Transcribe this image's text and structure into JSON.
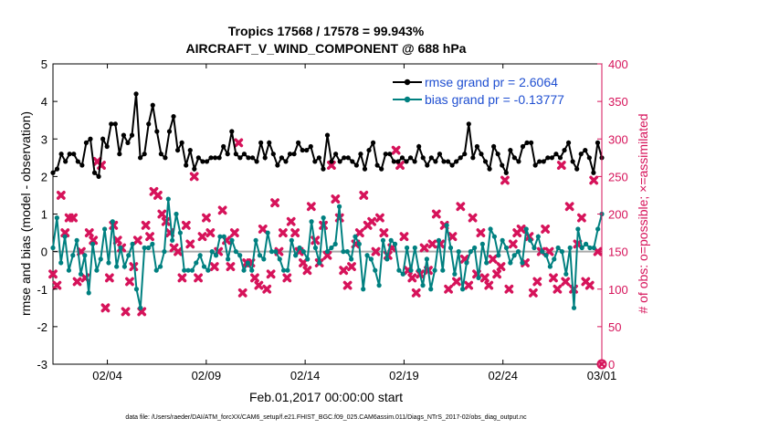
{
  "chart_data": {
    "type": "line",
    "title": "Tropics 17568 / 17578 = 99.943%",
    "subtitle": "AIRCRAFT_V_WIND_COMPONENT @ 688 hPa",
    "xlabel": "Feb.01,2017 00:00:00 start",
    "ylabel_left": "rmse and bias (model - observation)",
    "ylabel_right": "# of obs: o=possible; ×=assimilated",
    "x_ticks": [
      "02/04",
      "02/09",
      "02/14",
      "02/19",
      "02/24",
      "03/01"
    ],
    "x_tick_days": [
      3,
      8,
      13,
      18,
      23,
      28
    ],
    "xlim_days": [
      0.25,
      28
    ],
    "ylim_left": [
      -3,
      5
    ],
    "yticks_left": [
      -3,
      -2,
      -1,
      0,
      1,
      2,
      3,
      4,
      5
    ],
    "ylim_right": [
      0,
      400
    ],
    "yticks_right": [
      0,
      50,
      100,
      150,
      200,
      250,
      300,
      350,
      400
    ],
    "legend": [
      {
        "label": "rmse grand pr = 2.6064",
        "color": "#000000"
      },
      {
        "label": "bias grand pr = -0.13777",
        "color": "#008080"
      }
    ],
    "legend_text_color": "#1f4fd1",
    "colors": {
      "rmse": "#000000",
      "bias": "#008080",
      "obs": "#d6135a",
      "zero": "#aaaaaa",
      "right_axis": "#d6135a"
    },
    "rmse": [
      2.1,
      2.2,
      2.6,
      2.4,
      2.6,
      2.6,
      2.4,
      2.3,
      2.9,
      3.0,
      2.1,
      2.0,
      3.0,
      2.8,
      3.4,
      3.4,
      2.6,
      3.1,
      2.9,
      3.1,
      4.2,
      2.5,
      2.6,
      3.4,
      3.9,
      3.2,
      2.6,
      2.5,
      3.2,
      3.6,
      2.7,
      2.9,
      2.3,
      2.7,
      2.2,
      2.5,
      2.4,
      2.4,
      2.5,
      2.5,
      2.5,
      2.8,
      2.6,
      3.2,
      2.6,
      2.5,
      2.6,
      2.5,
      2.5,
      2.4,
      2.9,
      2.5,
      2.9,
      2.6,
      2.3,
      2.5,
      2.4,
      2.6,
      2.6,
      2.9,
      2.7,
      2.7,
      2.8,
      2.4,
      2.5,
      2.2,
      3.1,
      2.4,
      2.6,
      2.4,
      2.5,
      2.5,
      2.4,
      2.3,
      2.6,
      2.2,
      2.7,
      2.9,
      2.3,
      2.2,
      2.6,
      2.6,
      2.4,
      2.4,
      2.5,
      2.4,
      2.5,
      2.4,
      2.8,
      2.5,
      2.3,
      2.5,
      2.4,
      2.6,
      2.4,
      2.4,
      2.3,
      2.4,
      2.5,
      2.6,
      3.4,
      2.5,
      2.8,
      2.6,
      2.4,
      2.2,
      2.8,
      2.6,
      2.3,
      2.1,
      2.7,
      2.5,
      2.4,
      2.8,
      2.9,
      2.9,
      2.3,
      2.4,
      2.4,
      2.5,
      2.5,
      2.6,
      2.5,
      2.7,
      2.9,
      2.4,
      2.2,
      2.6,
      2.7,
      2.5,
      2.1,
      2.9,
      2.5
    ],
    "bias": [
      0.1,
      0.9,
      -0.3,
      0.4,
      -0.5,
      -0.1,
      0.3,
      -0.6,
      -0.1,
      -1.1,
      0.2,
      -0.5,
      -0.2,
      0.6,
      -0.3,
      0.8,
      -0.4,
      0.1,
      -0.4,
      -0.1,
      0.2,
      -1.0,
      -1.5,
      0.1,
      0.1,
      0.2,
      -0.5,
      -0.4,
      0.0,
      1.4,
      0.3,
      1.0,
      0.5,
      -0.5,
      -0.5,
      -0.5,
      -0.3,
      -0.1,
      -0.4,
      -0.5,
      0.0,
      -0.1,
      0.4,
      0.4,
      -0.2,
      0.3,
      0.0,
      -0.1,
      -0.5,
      -0.3,
      -0.5,
      0.3,
      -0.1,
      -0.2,
      0.5,
      0.0,
      0.0,
      -0.2,
      -0.5,
      -0.5,
      0.3,
      -0.1,
      0.1,
      0.0,
      -0.2,
      0.8,
      0.1,
      -0.3,
      0.9,
      0.0,
      0.1,
      0.2,
      1.2,
      0.0,
      0.0,
      -0.2,
      0.4,
      0.2,
      -1.0,
      -0.1,
      -0.2,
      -0.5,
      -0.9,
      0.3,
      -0.2,
      0.3,
      0.2,
      -0.5,
      -0.6,
      0.1,
      -0.5,
      0.1,
      -0.5,
      -0.9,
      -0.2,
      -1.0,
      -0.5,
      0.3,
      -0.5,
      0.7,
      0.1,
      -0.6,
      0.0,
      -1.0,
      -0.3,
      0.0,
      0.1,
      -0.7,
      0.2,
      -0.3,
      0.6,
      0.4,
      -0.1,
      0.3,
      0.1,
      -0.3,
      -0.1,
      0.0,
      -0.3,
      0.6,
      0.3,
      0.1,
      0.4,
      0.0,
      -0.1,
      -0.4,
      -0.2,
      0.1,
      0.0,
      -0.6,
      0.1,
      -1.5,
      0.6,
      0.1,
      0.2,
      0.1,
      0.1,
      0.6,
      1.0
    ],
    "obs_assimilated": [
      120,
      105,
      225,
      175,
      195,
      195,
      110,
      150,
      115,
      175,
      165,
      270,
      265,
      75,
      115,
      185,
      165,
      155,
      70,
      110,
      130,
      165,
      70,
      185,
      170,
      230,
      225,
      200,
      190,
      175,
      155,
      150,
      115,
      185,
      160,
      250,
      115,
      170,
      195,
      175,
      130,
      150,
      205,
      165,
      130,
      175,
      295,
      95,
      135,
      135,
      115,
      105,
      180,
      100,
      120,
      215,
      150,
      175,
      115,
      190,
      175,
      150,
      135,
      125,
      210,
      165,
      135,
      185,
      145,
      265,
      220,
      195,
      125,
      105,
      130,
      160,
      175,
      225,
      185,
      190,
      150,
      195,
      175,
      145,
      155,
      285,
      265,
      170,
      125,
      115,
      95,
      120,
      155,
      125,
      160,
      200,
      160,
      185,
      100,
      170,
      110,
      210,
      140,
      105,
      195,
      120,
      175,
      115,
      105,
      140,
      120,
      130,
      245,
      100,
      160,
      175,
      180,
      135,
      170,
      95,
      110,
      150,
      180,
      150,
      115,
      100,
      265,
      110,
      210,
      100,
      160,
      195,
      110,
      105,
      245,
      150,
      0
    ],
    "obs_assimilated_note": "plotted markers"
  },
  "footer": "data file: /Users/raeder/DAI/ATM_forcXX/CAM6_setup/f.e21.FHIST_BGC.f09_025.CAM6assim.011/Diags_NTrS_2017-02/obs_diag_output.nc"
}
